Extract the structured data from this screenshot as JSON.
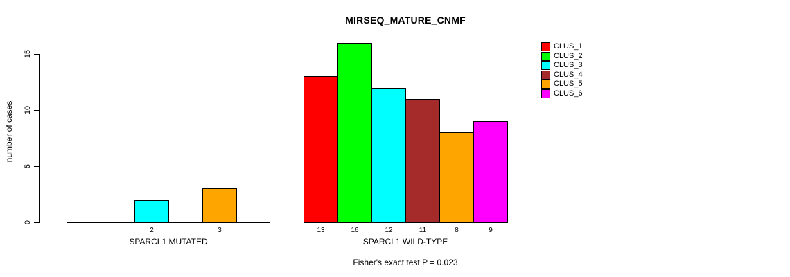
{
  "chart_data": {
    "type": "bar",
    "title": "MIRSEQ_MATURE_CNMF",
    "ylabel": "number of cases",
    "xlabel": "",
    "ylim": [
      0,
      15
    ],
    "yticks": [
      0,
      5,
      10,
      15
    ],
    "grid": false,
    "legend_position": "top-right",
    "clusters": [
      {
        "label": "CLUS_1",
        "color": "#FF0000"
      },
      {
        "label": "CLUS_2",
        "color": "#00FF00"
      },
      {
        "label": "CLUS_3",
        "color": "#00FFFF"
      },
      {
        "label": "CLUS_4",
        "color": "#A52A2A"
      },
      {
        "label": "CLUS_5",
        "color": "#FFA500"
      },
      {
        "label": "CLUS_6",
        "color": "#FF00FF"
      }
    ],
    "groups": [
      {
        "label": "SPARCL1 MUTATED",
        "values": [
          0,
          0,
          2,
          0,
          3,
          0
        ]
      },
      {
        "label": "SPARCL1 WILD-TYPE",
        "values": [
          13,
          16,
          12,
          11,
          8,
          9
        ]
      }
    ],
    "footnote": "Fisher's exact test P = 0.023"
  }
}
